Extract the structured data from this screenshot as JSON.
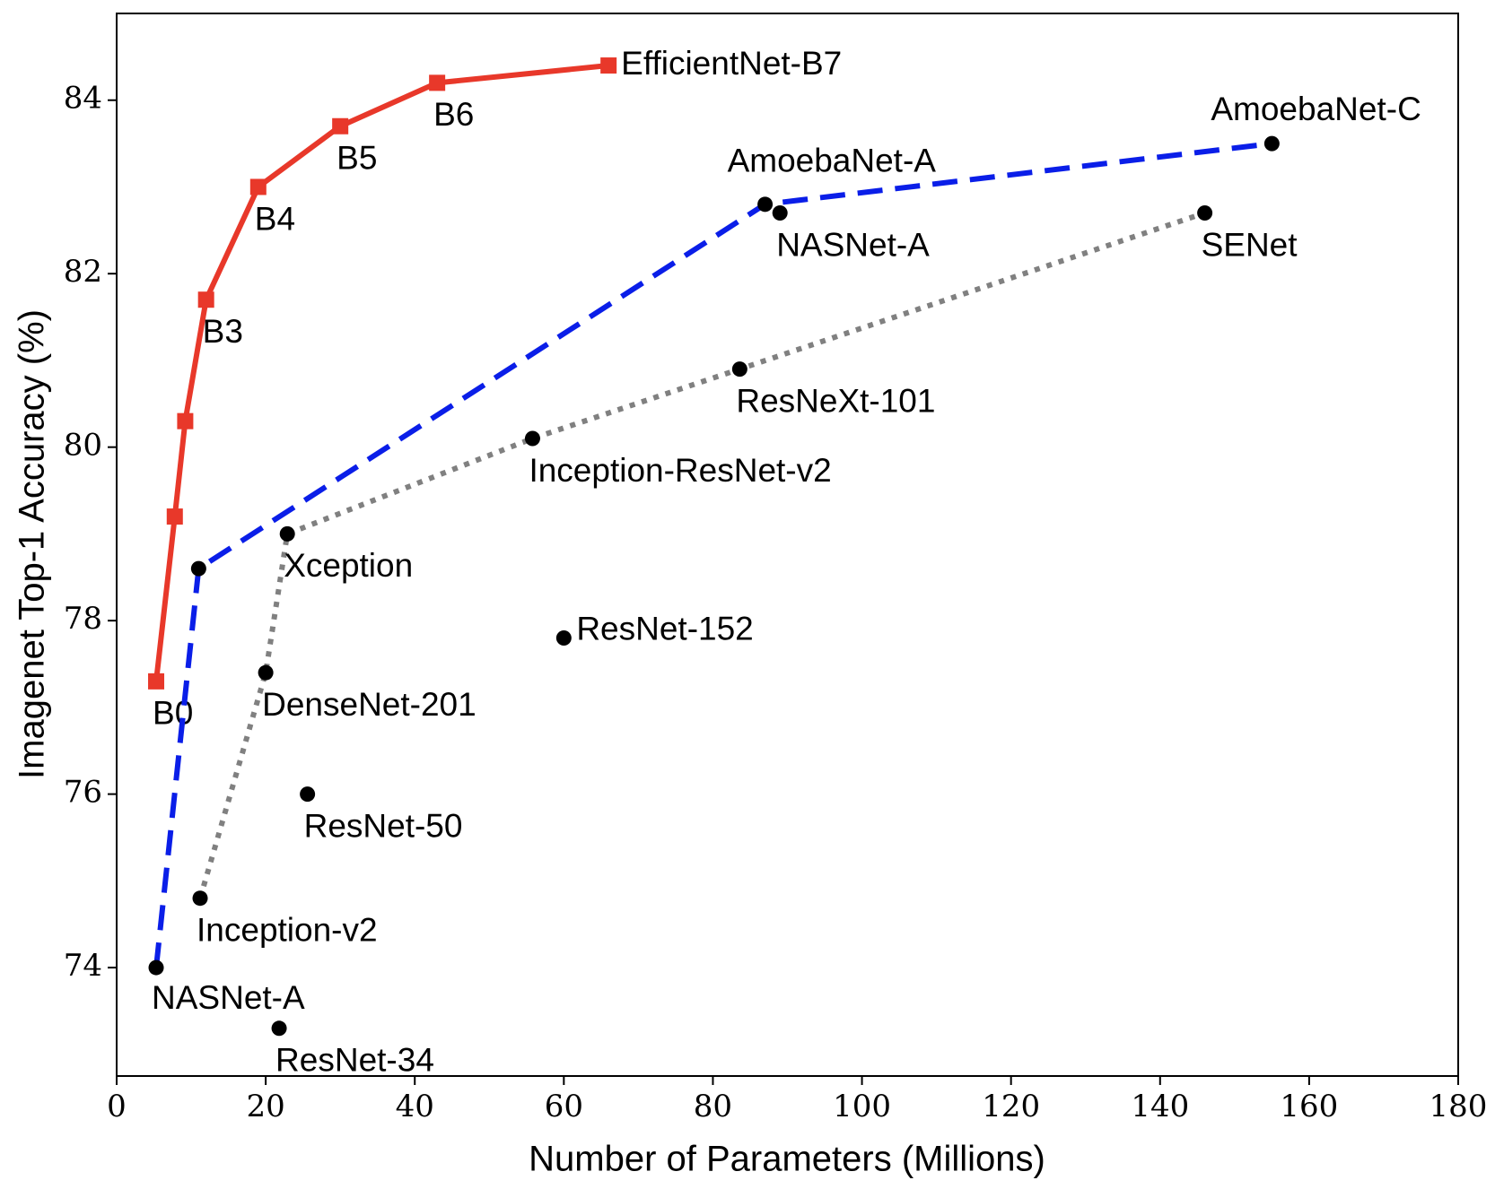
{
  "chart_data": {
    "type": "line",
    "x_label": "Number of Parameters (Millions)",
    "y_label": "Imagenet Top-1 Accuracy (%)",
    "xlim": [
      0,
      180
    ],
    "ylim": [
      72.75,
      85.0
    ],
    "xticks": [
      0,
      20,
      40,
      60,
      80,
      100,
      120,
      140,
      160,
      180
    ],
    "yticks": [
      74,
      76,
      78,
      80,
      82,
      84
    ],
    "series": [
      {
        "color": "#e8382a",
        "line_style": "solid",
        "marker": "square",
        "marker_color": "#e8382a",
        "x": [
          5.3,
          7.8,
          9.2,
          12,
          19,
          30,
          43,
          66
        ],
        "values": [
          77.3,
          79.2,
          80.3,
          81.7,
          83.0,
          83.7,
          84.2,
          84.4
        ],
        "labels": [
          "B0",
          null,
          null,
          "B3",
          "B4",
          "B5",
          "B6",
          "EfficientNet-B7"
        ]
      },
      {
        "color": "#0a1ee8",
        "line_style": "dashed",
        "marker": "circle",
        "marker_color": "#000000",
        "x": [
          5.3,
          11,
          87,
          155
        ],
        "values": [
          74.0,
          78.6,
          82.8,
          83.5
        ],
        "labels": [
          "NASNet-A",
          null,
          "AmoebaNet-A",
          "AmoebaNet-C"
        ]
      },
      {
        "color": "#808080",
        "line_style": "dotted",
        "marker": "circle",
        "marker_color": "#000000",
        "x": [
          11.2,
          20,
          22.9,
          55.8,
          83.6,
          146
        ],
        "values": [
          74.8,
          77.4,
          79.0,
          80.1,
          80.9,
          82.7
        ],
        "labels": [
          "Inception-v2",
          "DenseNet-201",
          "Xception",
          "Inception-ResNet-v2",
          "ResNeXt-101",
          "SENet"
        ]
      },
      {
        "color": "#000000",
        "line_style": "none",
        "marker": "circle",
        "marker_color": "#000000",
        "x": [
          89,
          60,
          25.6,
          21.8
        ],
        "values": [
          82.7,
          77.8,
          76.0,
          73.3
        ],
        "labels": [
          "NASNet-A",
          "ResNet-152",
          "ResNet-50",
          "ResNet-34"
        ]
      }
    ]
  }
}
